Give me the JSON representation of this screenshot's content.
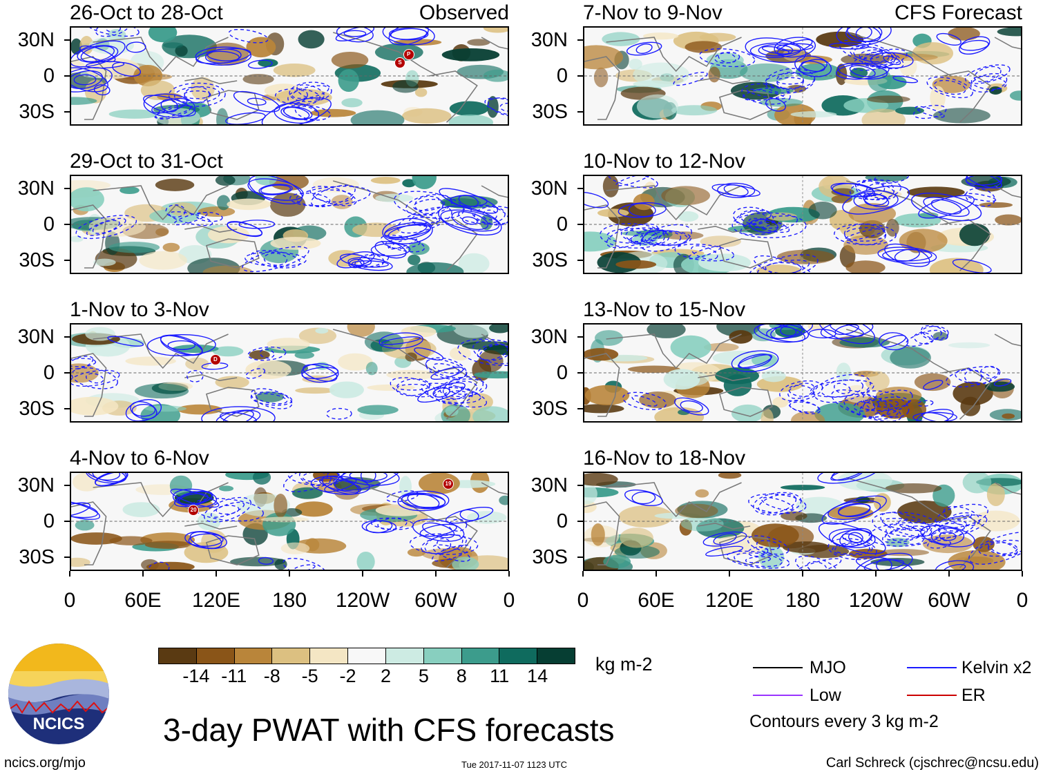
{
  "panels": [
    {
      "title": "26-Oct to 28-Oct",
      "tag": "Observed"
    },
    {
      "title": "7-Nov to 9-Nov",
      "tag": "CFS Forecast"
    },
    {
      "title": "29-Oct to 31-Oct",
      "tag": ""
    },
    {
      "title": "10-Nov to 12-Nov",
      "tag": ""
    },
    {
      "title": "1-Nov to 3-Nov",
      "tag": ""
    },
    {
      "title": "13-Nov to 15-Nov",
      "tag": ""
    },
    {
      "title": "4-Nov to 6-Nov",
      "tag": ""
    },
    {
      "title": "16-Nov to 18-Nov",
      "tag": ""
    }
  ],
  "lat_labels": [
    "30N",
    "0",
    "30S"
  ],
  "lon_labels": [
    "0",
    "60E",
    "120E",
    "180",
    "120W",
    "60W",
    "0"
  ],
  "colorbar": {
    "colors": [
      "#5a3a12",
      "#8a5518",
      "#b9853a",
      "#dcc081",
      "#f4e6c4",
      "#f8f8f8",
      "#cdebe3",
      "#88cfbf",
      "#3c9c8c",
      "#0f6b5e",
      "#063e33"
    ],
    "labels": [
      "-14",
      "-11",
      "-8",
      "-5",
      "-2",
      "2",
      "5",
      "8",
      "11",
      "14"
    ],
    "units": "kg m-2"
  },
  "title": "3-day PWAT with CFS forecasts",
  "legend": {
    "items": [
      {
        "label": "MJO",
        "color": "#000000"
      },
      {
        "label": "Kelvin x2",
        "color": "#1a1aff"
      },
      {
        "label": "Low",
        "color": "#9933ff"
      },
      {
        "label": "ER",
        "color": "#cc0000"
      }
    ],
    "note": "Contours every 3 kg m-2"
  },
  "logo_text": "NCICS",
  "footer": {
    "site": "ncics.org/mjo",
    "timestamp": "Tue 2017-11-07 1123 UTC",
    "author": "Carl Schreck (cjschrec@ncsu.edu)"
  },
  "storm_markers": {
    "panel0": [
      "P",
      "S"
    ],
    "panel4": [
      "D"
    ],
    "panel6": [
      "20",
      "19"
    ]
  }
}
